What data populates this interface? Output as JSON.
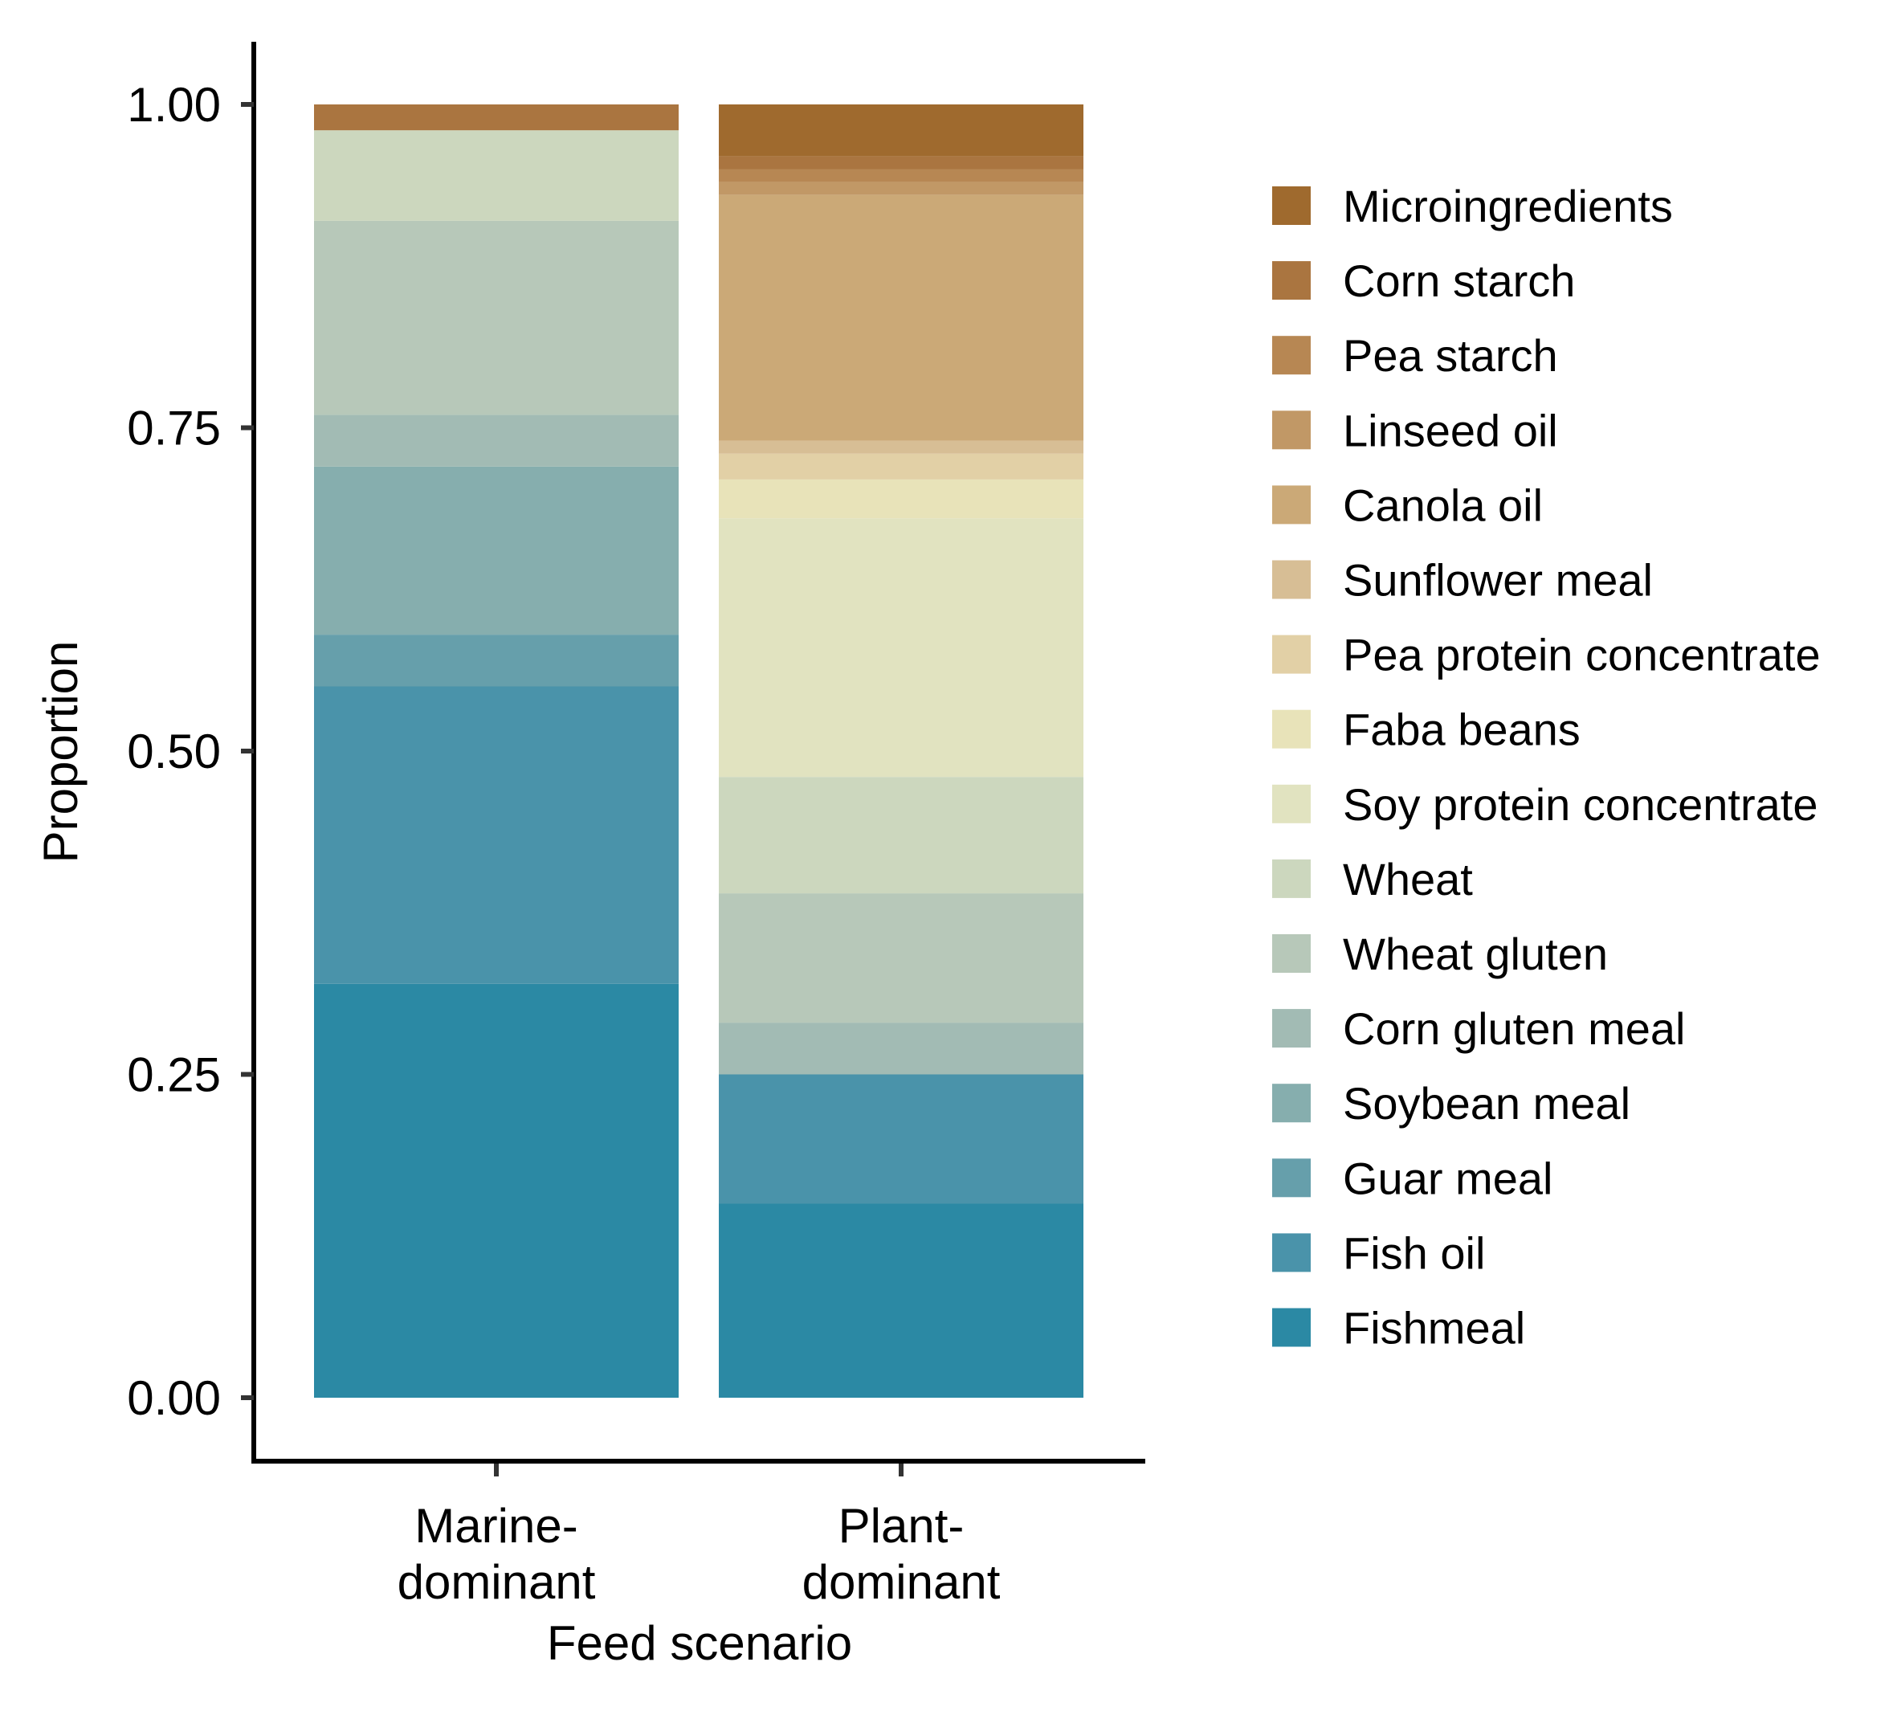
{
  "chart_data": {
    "type": "bar",
    "stacked": true,
    "orientation": "vertical",
    "title": "",
    "xlabel": "Feed scenario",
    "ylabel": "Proportion",
    "ylim": [
      -0.05,
      1.05
    ],
    "yticks": [
      "0.00",
      "0.25",
      "0.50",
      "0.75",
      "1.00"
    ],
    "ytick_values": [
      0,
      0.25,
      0.5,
      0.75,
      1.0
    ],
    "categories": [
      {
        "line1": "Marine-",
        "line2": "dominant"
      },
      {
        "line1": "Plant-",
        "line2": "dominant"
      }
    ],
    "legend_position": "right",
    "grid": false,
    "series": [
      {
        "name": "Fishmeal",
        "color": "#2b89a4",
        "values": [
          0.32,
          0.15
        ]
      },
      {
        "name": "Fish oil",
        "color": "#4a93aa",
        "values": [
          0.23,
          0.1
        ]
      },
      {
        "name": "Guar meal",
        "color": "#669fab",
        "values": [
          0.04,
          0.0
        ]
      },
      {
        "name": "Soybean meal",
        "color": "#86aeae",
        "values": [
          0.13,
          0.0
        ]
      },
      {
        "name": "Corn gluten meal",
        "color": "#a2bbb4",
        "values": [
          0.04,
          0.04
        ]
      },
      {
        "name": "Wheat gluten",
        "color": "#b7c8b9",
        "values": [
          0.15,
          0.1
        ]
      },
      {
        "name": "Wheat",
        "color": "#ccd7be",
        "values": [
          0.07,
          0.09
        ]
      },
      {
        "name": "Soy protein concentrate",
        "color": "#e1e3c0",
        "values": [
          0.0,
          0.2
        ]
      },
      {
        "name": "Faba beans",
        "color": "#e8e3b9",
        "values": [
          0.0,
          0.03
        ]
      },
      {
        "name": "Pea protein concentrate",
        "color": "#e2d0a6",
        "values": [
          0.0,
          0.02
        ]
      },
      {
        "name": "Sunflower meal",
        "color": "#d7be95",
        "values": [
          0.0,
          0.01
        ]
      },
      {
        "name": "Canola oil",
        "color": "#cba977",
        "values": [
          0.0,
          0.19
        ]
      },
      {
        "name": "Linseed oil",
        "color": "#c19866",
        "values": [
          0.0,
          0.01
        ]
      },
      {
        "name": "Pea starch",
        "color": "#b78753",
        "values": [
          0.0,
          0.01
        ]
      },
      {
        "name": "Corn starch",
        "color": "#aa7540",
        "values": [
          0.02,
          0.01
        ]
      },
      {
        "name": "Microingredients",
        "color": "#9f6a2e",
        "values": [
          0.0,
          0.04
        ]
      }
    ]
  }
}
